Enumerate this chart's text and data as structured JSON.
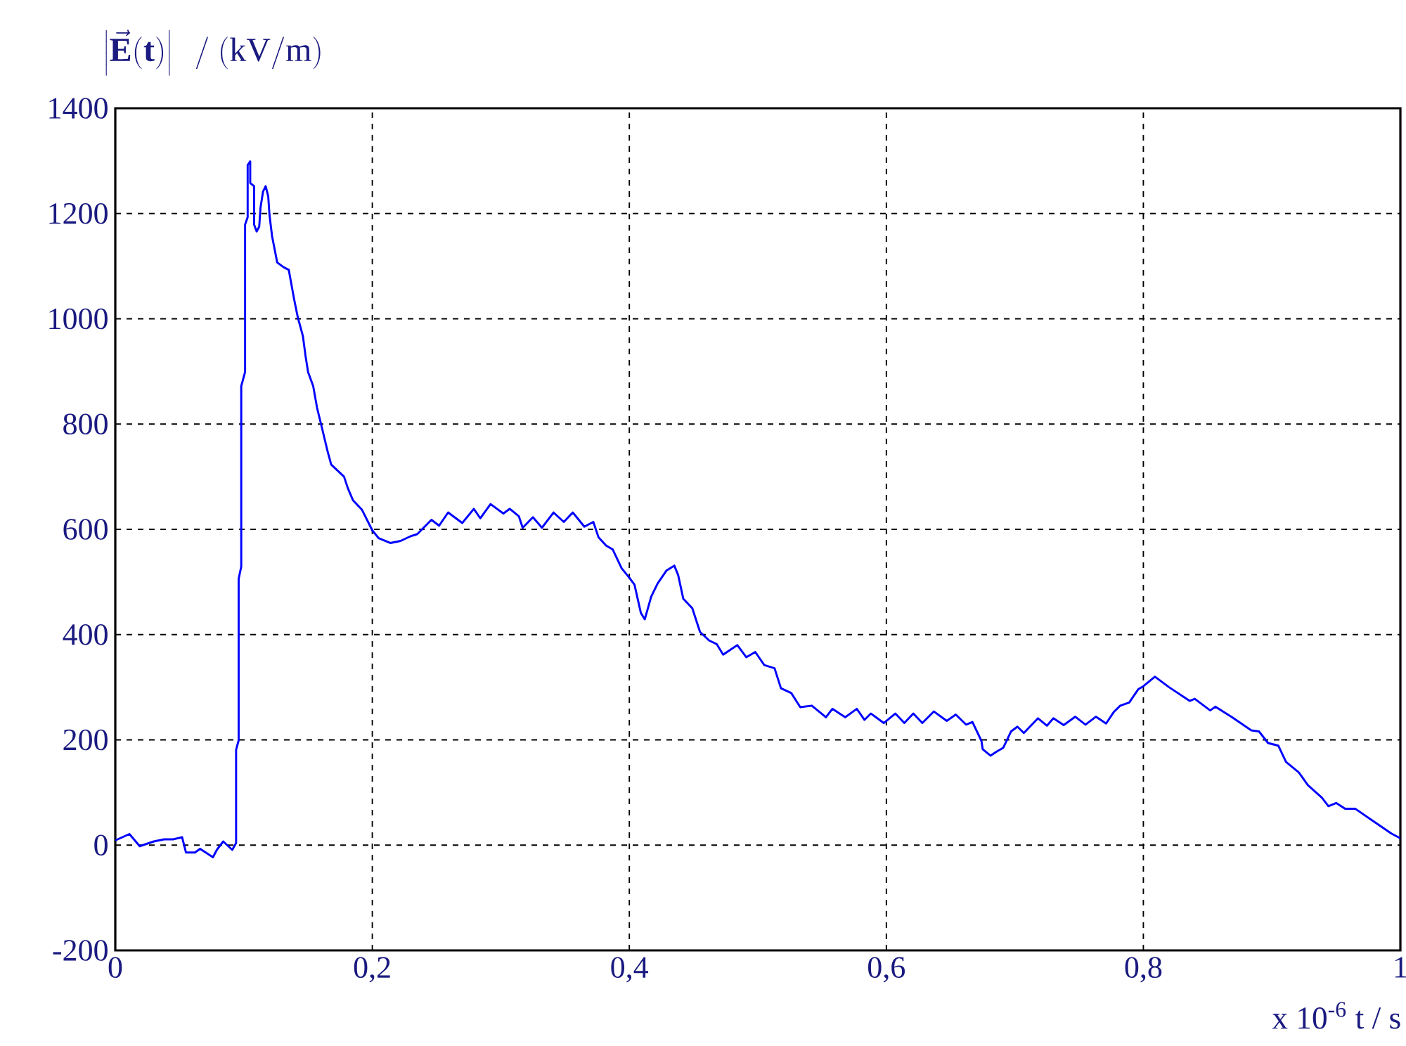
{
  "chart_data": {
    "type": "line",
    "ylabel": "\\left|\\vec{\\mathbf{E}}(\\mathbf{t})\\right|\\ \\ /\\ (\\mathrm{kV/m})",
    "xlabel": "x 10$^{-6}$  t / s",
    "xlim": [
      0,
      1
    ],
    "ylim": [
      -200,
      1400
    ],
    "xticks": [
      0,
      {
        "value": 0.2,
        "label": "0,2"
      },
      {
        "value": 0.4,
        "label": "0,4"
      },
      {
        "value": 0.6,
        "label": "0,6"
      },
      {
        "value": 0.8,
        "label": "0,8"
      },
      1
    ],
    "yticks": [
      -200,
      0,
      200,
      400,
      600,
      800,
      1000,
      1200,
      1400
    ],
    "grid": true,
    "line_style": "dashed",
    "marker": "none",
    "series": [
      {
        "color": "#0000ff",
        "line_style": "solid",
        "x": [
          0,
          0.011,
          0.019,
          0.03,
          0.038,
          0.045,
          0.052,
          0.055,
          0.062,
          0.066,
          0.076,
          0.079,
          0.084,
          0.091,
          0.094,
          0.094,
          0.096,
          0.096,
          0.098,
          0.098,
          0.101,
          0.101,
          0.103,
          0.103,
          0.105,
          0.105,
          0.108,
          0.108,
          0.11,
          0.112,
          0.113,
          0.115,
          0.117,
          0.119,
          0.12,
          0.122,
          0.126,
          0.131,
          0.135,
          0.137,
          0.139,
          0.142,
          0.146,
          0.148,
          0.15,
          0.154,
          0.157,
          0.161,
          0.165,
          0.168,
          0.178,
          0.181,
          0.185,
          0.192,
          0.2,
          0.205,
          0.214,
          0.222,
          0.229,
          0.235,
          0.246,
          0.252,
          0.259,
          0.27,
          0.279,
          0.284,
          0.292,
          0.302,
          0.307,
          0.314,
          0.317,
          0.325,
          0.332,
          0.341,
          0.349,
          0.356,
          0.365,
          0.372,
          0.376,
          0.382,
          0.387,
          0.394,
          0.4,
          0.404,
          0.409,
          0.412,
          0.417,
          0.422,
          0.429,
          0.435,
          0.438,
          0.442,
          0.449,
          0.455,
          0.462,
          0.468,
          0.473,
          0.484,
          0.491,
          0.498,
          0.505,
          0.513,
          0.518,
          0.526,
          0.533,
          0.542,
          0.553,
          0.558,
          0.568,
          0.577,
          0.583,
          0.588,
          0.598,
          0.607,
          0.614,
          0.621,
          0.628,
          0.637,
          0.647,
          0.654,
          0.662,
          0.667,
          0.674,
          0.675,
          0.681,
          0.686,
          0.691,
          0.697,
          0.702,
          0.707,
          0.718,
          0.725,
          0.73,
          0.738,
          0.747,
          0.755,
          0.763,
          0.771,
          0.777,
          0.782,
          0.789,
          0.796,
          0.8,
          0.809,
          0.82,
          0.836,
          0.84,
          0.852,
          0.856,
          0.869,
          0.884,
          0.89,
          0.897,
          0.905,
          0.911,
          0.921,
          0.928,
          0.939,
          0.944,
          0.95,
          0.957,
          0.965,
          0.978,
          0.993,
          1.0
        ],
        "values": [
          9,
          21,
          -2,
          7,
          11,
          11,
          15,
          -14,
          -14,
          -7,
          -23,
          -9,
          7,
          -9,
          4,
          181,
          199,
          506,
          529,
          872,
          899,
          1179,
          1193,
          1292,
          1299,
          1258,
          1252,
          1179,
          1166,
          1175,
          1211,
          1242,
          1252,
          1233,
          1197,
          1157,
          1107,
          1098,
          1093,
          1066,
          1039,
          1003,
          967,
          930,
          899,
          872,
          831,
          791,
          750,
          723,
          700,
          678,
          655,
          637,
          598,
          583,
          574,
          578,
          586,
          591,
          618,
          607,
          632,
          612,
          639,
          621,
          648,
          630,
          639,
          625,
          603,
          623,
          603,
          632,
          614,
          632,
          605,
          614,
          585,
          569,
          562,
          526,
          508,
          495,
          441,
          429,
          472,
          497,
          522,
          531,
          513,
          468,
          450,
          405,
          389,
          382,
          362,
          380,
          357,
          367,
          342,
          336,
          298,
          289,
          262,
          265,
          243,
          259,
          243,
          259,
          238,
          250,
          232,
          250,
          232,
          250,
          232,
          254,
          236,
          248,
          229,
          234,
          198,
          182,
          170,
          178,
          185,
          216,
          225,
          213,
          241,
          227,
          241,
          228,
          244,
          229,
          244,
          231,
          253,
          265,
          271,
          296,
          302,
          320,
          300,
          274,
          278,
          256,
          263,
          243,
          218,
          216,
          194,
          189,
          158,
          138,
          114,
          90,
          74,
          80,
          69,
          69,
          47,
          22,
          13
        ]
      }
    ]
  }
}
